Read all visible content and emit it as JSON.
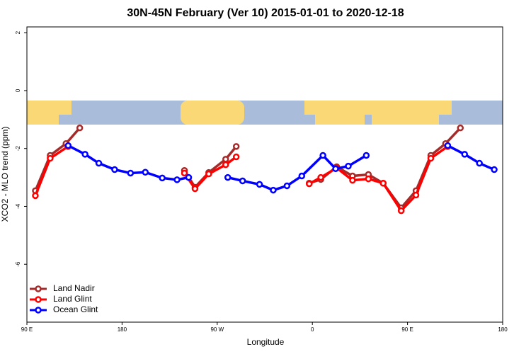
{
  "chart_data": {
    "type": "line",
    "title": "30N-45N February (Ver 10)   2015-01-01 to 2020-12-18",
    "x_label": "Longitude",
    "y_label": "XCO2 - MLO trend (ppm)",
    "xlim": [
      90,
      540
    ],
    "xticks": [
      {
        "value": 90,
        "label": "90 E"
      },
      {
        "value": 180,
        "label": "180"
      },
      {
        "value": 270,
        "label": "90 W"
      },
      {
        "value": 360,
        "label": "0"
      },
      {
        "value": 450,
        "label": "90 E"
      },
      {
        "value": 540,
        "label": "180"
      }
    ],
    "ylim": [
      -8,
      2.2
    ],
    "yticks": [
      2,
      0,
      -2,
      -4,
      -6
    ],
    "legend": "bottom-left",
    "series": [
      {
        "name": "Land Nadir",
        "color": "#a52a2a",
        "x": [
          98,
          112,
          127,
          140,
          null,
          239,
          249,
          262,
          278,
          288,
          null,
          357,
          368,
          383,
          398,
          413,
          427,
          444,
          458,
          472,
          486,
          500
        ],
        "values": [
          -3.46,
          -2.24,
          -1.83,
          -1.29,
          null,
          -2.76,
          -3.34,
          -2.83,
          -2.37,
          -1.93,
          null,
          -3.2,
          -3.07,
          -2.63,
          -2.95,
          -2.9,
          -3.2,
          -4.05,
          -3.46,
          -2.24,
          -1.83,
          -1.29
        ]
      },
      {
        "name": "Land Glint",
        "color": "#ff0000",
        "x": [
          98,
          112,
          129,
          null,
          239,
          249,
          262,
          278,
          288,
          null,
          357,
          368,
          383,
          398,
          413,
          427,
          444,
          458,
          472,
          488
        ],
        "values": [
          -3.63,
          -2.34,
          -1.93,
          null,
          -2.85,
          -3.39,
          -2.88,
          -2.56,
          -2.29,
          null,
          -3.22,
          -3.0,
          -2.67,
          -3.1,
          -3.05,
          -3.2,
          -4.15,
          -3.61,
          -2.34,
          -1.93
        ]
      },
      {
        "name": "Ocean Glint",
        "color": "#0000ff",
        "x": [
          129,
          145,
          158,
          173,
          188,
          202,
          218,
          232,
          243,
          null,
          280,
          294,
          310,
          323,
          336,
          350,
          370,
          382,
          394,
          411,
          null,
          488,
          504,
          518,
          532
        ],
        "values": [
          -1.9,
          -2.2,
          -2.51,
          -2.73,
          -2.85,
          -2.82,
          -3.02,
          -3.08,
          -3.0,
          null,
          -3.0,
          -3.12,
          -3.24,
          -3.44,
          -3.29,
          -2.95,
          -2.24,
          -2.7,
          -2.61,
          -2.24,
          null,
          -1.9,
          -2.2,
          -2.51,
          -2.73
        ]
      }
    ]
  }
}
